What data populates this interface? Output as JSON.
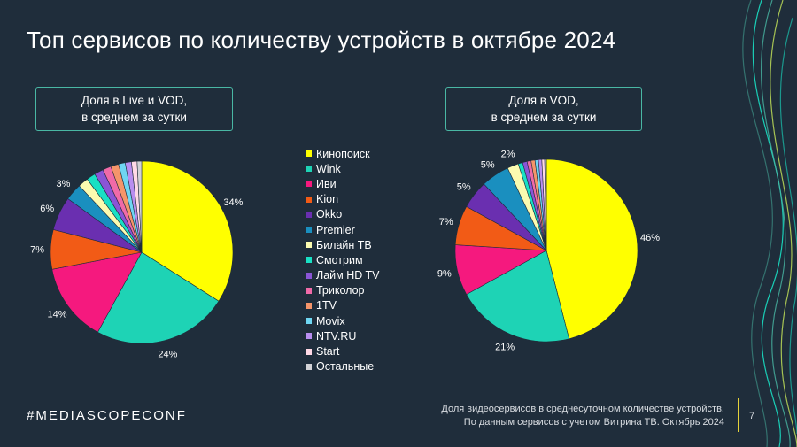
{
  "title": "Топ сервисов по количеству устройств в октябре 2024",
  "hashtag": "#MEDIASCOPECONF",
  "footnote": {
    "line1": "Доля видеосервисов в среднесуточном количестве устройств.",
    "line2": "По данным сервисов с учетом Витрина ТВ. Октябрь 2024"
  },
  "page_number": "7",
  "colors": {
    "background": "#1f2d3b",
    "accent": "#49b7a4",
    "divider": "#e5d23a"
  },
  "chart_data": [
    {
      "type": "pie",
      "title_line1": "Доля в Live и VOD,",
      "title_line2": "в среднем за сутки",
      "categories": [
        "Кинопоиск",
        "Wink",
        "Иви",
        "Kion",
        "Okko",
        "Premier",
        "Билайн ТВ",
        "Смотрим",
        "Лайм HD TV",
        "Триколор",
        "1TV",
        "Movix",
        "NTV.RU",
        "Start",
        "Остальные"
      ],
      "values": [
        34,
        24,
        14,
        7,
        6,
        3,
        1.8,
        1.6,
        1.6,
        1.5,
        1.4,
        1.2,
        1.1,
        1.0,
        0.8
      ],
      "labels": [
        "34%",
        "24%",
        "14%",
        "7%",
        "6%",
        "3%",
        "",
        "",
        "",
        "",
        "",
        "",
        "",
        "",
        ""
      ]
    },
    {
      "type": "pie",
      "title_line1": "Доля в VOD,",
      "title_line2": "в среднем за сутки",
      "categories": [
        "Кинопоиск",
        "Wink",
        "Иви",
        "Kion",
        "Okko",
        "Premier",
        "Билайн ТВ",
        "Смотрим",
        "Лайм HD TV",
        "Триколор",
        "1TV",
        "Movix",
        "NTV.RU",
        "Start",
        "Остальные"
      ],
      "values": [
        46,
        21,
        9,
        7,
        5,
        5,
        2,
        0.8,
        0.8,
        0.7,
        0.7,
        0.6,
        0.6,
        0.5,
        0.3
      ],
      "labels": [
        "46%",
        "21%",
        "9%",
        "7%",
        "5%",
        "5%",
        "2%",
        "",
        "",
        "",
        "",
        "",
        "",
        "",
        ""
      ]
    }
  ],
  "legend": {
    "items": [
      {
        "label": "Кинопоиск",
        "color": "#ffff00"
      },
      {
        "label": "Wink",
        "color": "#1ed3b5"
      },
      {
        "label": "Иви",
        "color": "#f5197e"
      },
      {
        "label": "Kion",
        "color": "#f25b16"
      },
      {
        "label": "Okko",
        "color": "#6a2fb0"
      },
      {
        "label": "Premier",
        "color": "#1a8fbf"
      },
      {
        "label": "Билайн ТВ",
        "color": "#fbfbb0"
      },
      {
        "label": "Смотрим",
        "color": "#19e0c4"
      },
      {
        "label": "Лайм HD TV",
        "color": "#8a55d6"
      },
      {
        "label": "Триколор",
        "color": "#f06aa8"
      },
      {
        "label": "1TV",
        "color": "#f5956a"
      },
      {
        "label": "Movix",
        "color": "#6fd6f2"
      },
      {
        "label": "NTV.RU",
        "color": "#b98ef0"
      },
      {
        "label": "Start",
        "color": "#ffd9e6"
      },
      {
        "label": "Остальные",
        "color": "#d2d2d6"
      }
    ]
  }
}
